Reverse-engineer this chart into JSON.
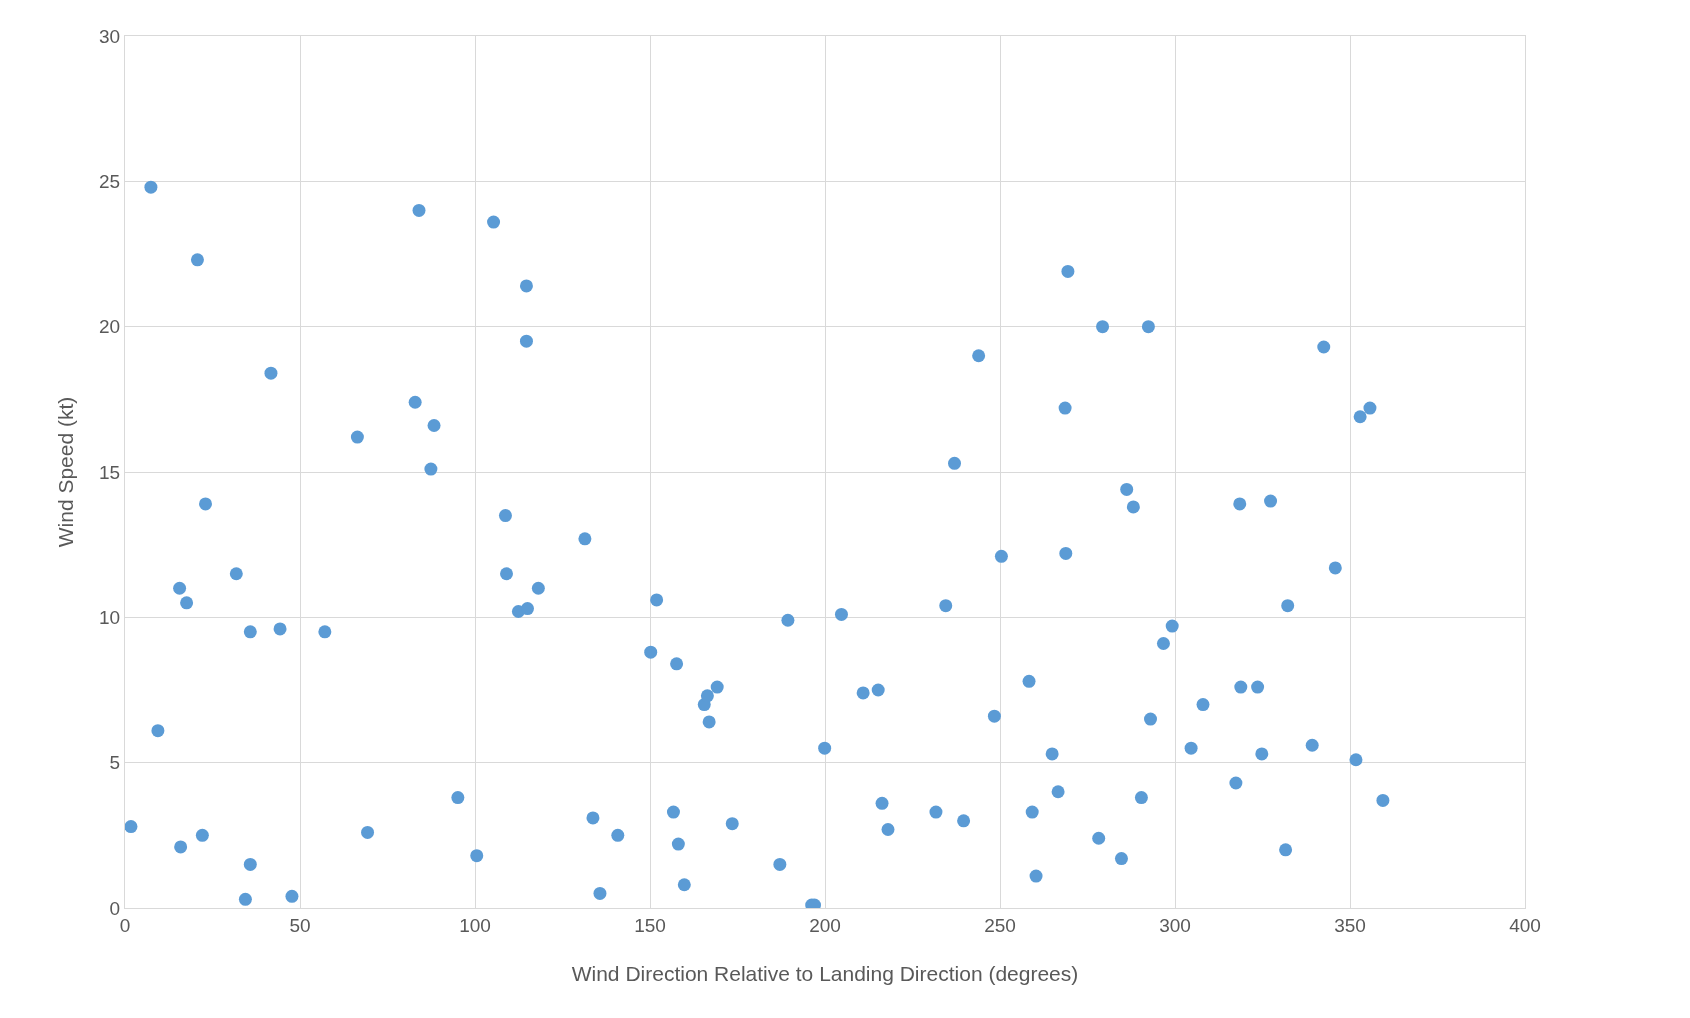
{
  "chart_data": {
    "type": "scatter",
    "xlabel": "Wind Direction Relative to Landing Direction (degrees)",
    "ylabel": "Wind Speed (kt)",
    "xlim": [
      0,
      400
    ],
    "xticks": [
      0,
      50,
      100,
      150,
      200,
      250,
      300,
      350,
      400
    ],
    "ylim": [
      0,
      30
    ],
    "yticks": [
      0,
      5,
      10,
      15,
      20,
      25,
      30
    ],
    "grid": true,
    "marker": "circle",
    "series": [
      {
        "color": "#5b9bd5",
        "x": [
          7.4,
          20.7,
          41.7,
          23.0,
          31.8,
          15.6,
          17.6,
          35.8,
          44.3,
          57.1,
          9.4,
          1.7,
          15.9,
          22.1,
          35.8,
          34.4,
          47.7,
          66.4,
          69.3,
          84.0,
          82.9,
          88.3,
          87.4,
          95.1,
          100.5,
          105.3,
          114.7,
          114.7,
          108.7,
          109.0,
          112.4,
          115.0,
          118.1,
          131.4,
          133.7,
          135.7,
          140.8,
          151.9,
          150.2,
          157.6,
          156.7,
          158.1,
          159.8,
          165.5,
          166.4,
          169.2,
          166.9,
          173.5,
          187.1,
          189.4,
          196.2,
          197.0,
          199.9,
          204.7,
          210.9,
          215.2,
          216.3,
          218.0,
          231.7,
          234.5,
          237.0,
          239.6,
          243.9,
          250.4,
          248.4,
          258.3,
          259.2,
          260.3,
          264.9,
          266.6,
          269.4,
          268.6,
          268.8,
          279.3,
          278.2,
          286.2,
          288.1,
          284.7,
          292.4,
          290.4,
          293.0,
          296.7,
          299.2,
          304.6,
          308.0,
          318.5,
          318.8,
          317.4,
          323.6,
          324.8,
          327.3,
          332.2,
          331.6,
          342.5,
          339.2,
          345.8,
          352.9,
          355.7,
          351.7,
          359.4
        ],
        "values": [
          24.8,
          22.3,
          18.4,
          13.9,
          11.5,
          11.0,
          10.5,
          9.5,
          9.6,
          9.5,
          6.1,
          2.8,
          2.1,
          2.5,
          1.5,
          0.3,
          0.4,
          16.2,
          2.6,
          24.0,
          17.4,
          16.6,
          15.1,
          3.8,
          1.8,
          23.6,
          21.4,
          19.5,
          13.5,
          11.5,
          10.2,
          10.3,
          11.0,
          12.7,
          3.1,
          0.5,
          2.5,
          10.6,
          8.8,
          8.4,
          3.3,
          2.2,
          0.8,
          7.0,
          7.3,
          7.6,
          6.4,
          2.9,
          1.5,
          9.9,
          0.1,
          0.1,
          5.5,
          10.1,
          7.4,
          7.5,
          3.6,
          2.7,
          3.3,
          10.4,
          15.3,
          3.0,
          19.0,
          12.1,
          6.6,
          7.8,
          3.3,
          1.1,
          5.3,
          4.0,
          21.9,
          17.2,
          12.2,
          20.0,
          2.4,
          14.4,
          13.8,
          1.7,
          20.0,
          3.8,
          6.5,
          9.1,
          9.7,
          5.5,
          7.0,
          13.9,
          7.6,
          4.3,
          7.6,
          5.3,
          14.0,
          10.4,
          2.0,
          19.3,
          5.6,
          11.7,
          16.9,
          17.2,
          5.1,
          3.7
        ]
      }
    ]
  }
}
